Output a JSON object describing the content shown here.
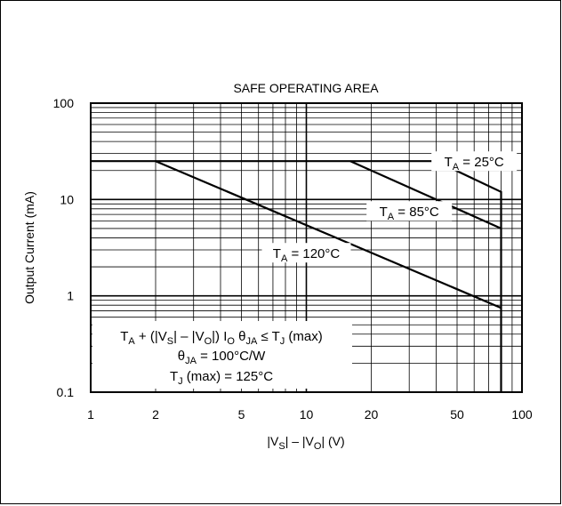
{
  "chart_data": {
    "type": "line",
    "title": "SAFE OPERATING AREA",
    "ylabel": "Output Current (mA)",
    "xlabel_parts": [
      "|V",
      "S",
      "| – |V",
      "O",
      "|   (V)"
    ],
    "x_scale": "log",
    "y_scale": "log",
    "xlim": [
      1,
      100
    ],
    "ylim": [
      0.1,
      100
    ],
    "x_ticks": [
      {
        "value": 1,
        "label": "1"
      },
      {
        "value": 2,
        "label": "2"
      },
      {
        "value": 5,
        "label": "5"
      },
      {
        "value": 10,
        "label": "10"
      },
      {
        "value": 20,
        "label": "20"
      },
      {
        "value": 50,
        "label": "50"
      },
      {
        "value": 100,
        "label": "100"
      }
    ],
    "y_ticks": [
      {
        "value": 0.1,
        "label": "0.1"
      },
      {
        "value": 1,
        "label": "1"
      },
      {
        "value": 10,
        "label": "10"
      },
      {
        "value": 100,
        "label": "100"
      }
    ],
    "grid": true,
    "series": [
      {
        "label_parts": [
          "T",
          "A",
          " = 25°C"
        ],
        "points": [
          [
            1,
            25
          ],
          [
            40,
            25
          ],
          [
            80,
            12
          ],
          [
            80,
            0.1
          ]
        ]
      },
      {
        "label_parts": [
          "T",
          "A",
          " = 85°C"
        ],
        "points": [
          [
            16,
            25
          ],
          [
            80,
            5
          ]
        ]
      },
      {
        "label_parts": [
          "T",
          "A",
          " = 120°C"
        ],
        "points": [
          [
            2,
            25
          ],
          [
            80,
            0.75
          ]
        ]
      }
    ],
    "annotation": {
      "line1_parts": [
        "T",
        "A",
        " + (|V",
        "S",
        "| – |V",
        "O",
        "|) I",
        "O",
        " θ",
        "JA",
        " ≤ T",
        "J",
        " (max)"
      ],
      "line2_parts": [
        "θ",
        "JA",
        " = 100°C/W"
      ],
      "line3_parts": [
        "T",
        "J",
        " (max) = 125°C"
      ]
    }
  }
}
